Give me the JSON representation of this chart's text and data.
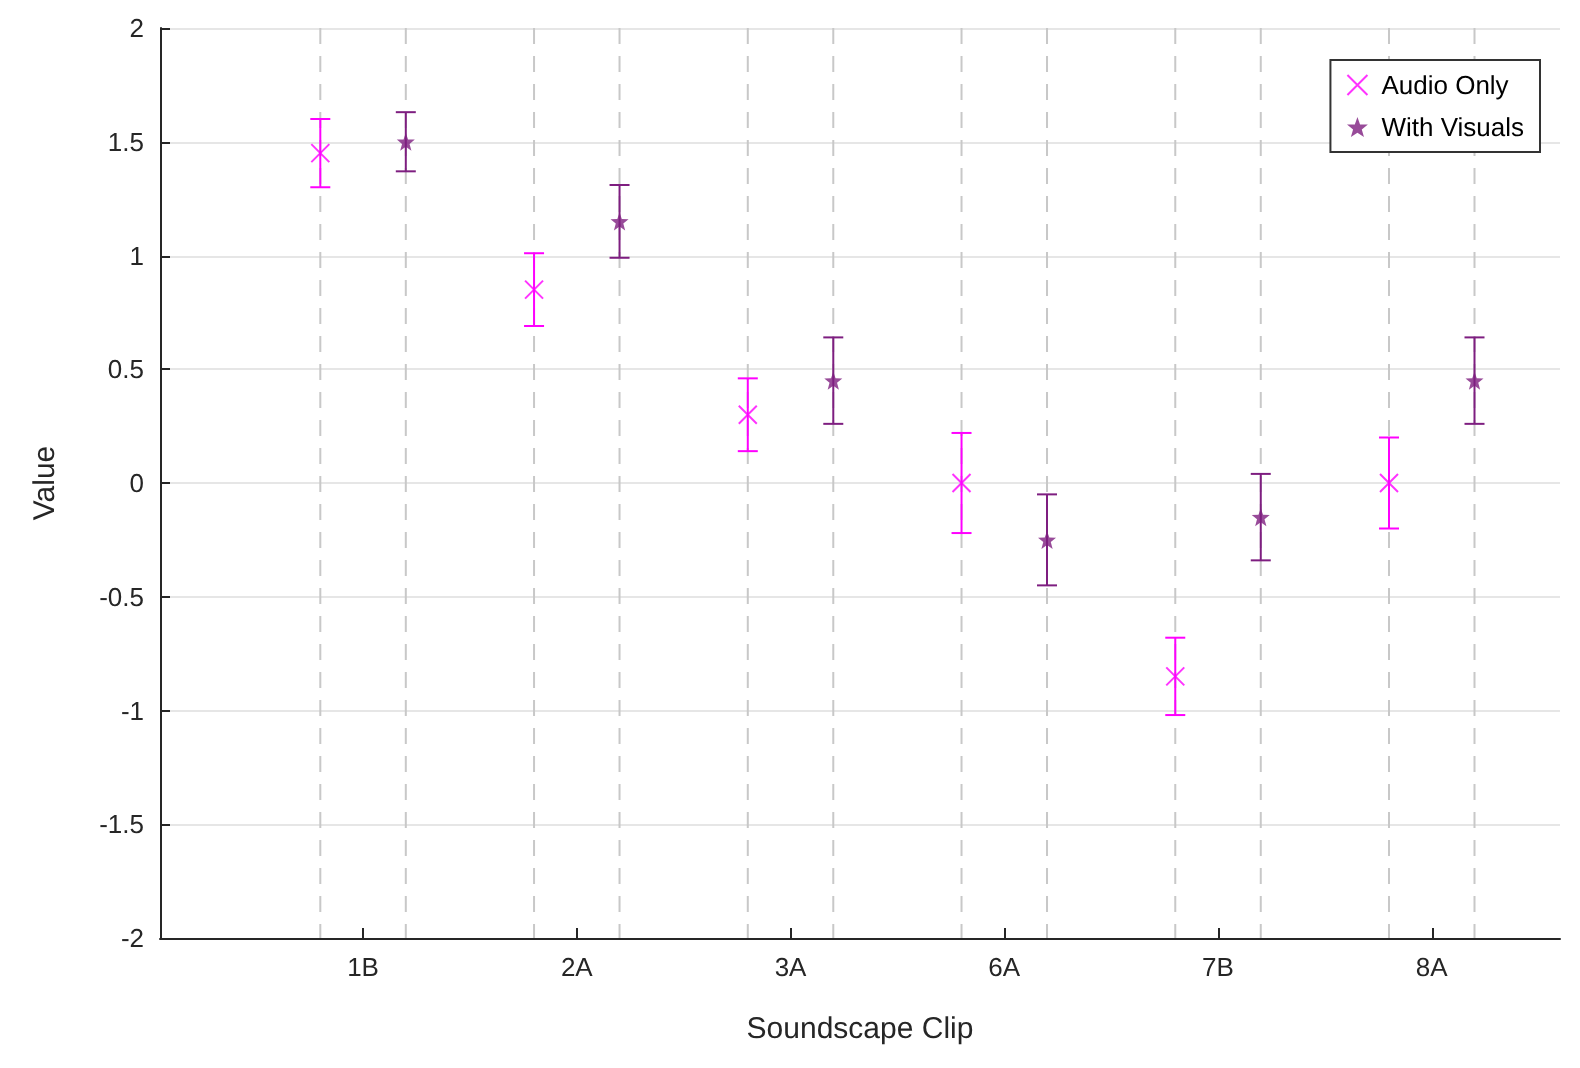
{
  "chart_data": {
    "type": "scatter",
    "xlabel": "Soundscape Clip",
    "ylabel": "Value",
    "categories": [
      "1B",
      "2A",
      "3A",
      "6A",
      "7B",
      "8A"
    ],
    "ylim": [
      -2,
      2
    ],
    "yticks": [
      -2,
      -1.5,
      -1,
      -0.5,
      0,
      0.5,
      1,
      1.5,
      2
    ],
    "grid": "y",
    "legend": "top right",
    "series": [
      {
        "name": "Audio Only",
        "color": "#ff00ff",
        "marker": "cross",
        "values": [
          1.45,
          0.85,
          0.3,
          0,
          -0.85,
          0
        ],
        "errors": [
          [
            1.3,
            1.6
          ],
          [
            0.69,
            1.01
          ],
          [
            0.14,
            0.46
          ],
          [
            -0.22,
            0.22
          ],
          [
            -1.02,
            -0.68
          ],
          [
            -0.2,
            0.2
          ]
        ]
      },
      {
        "name": "With Visuals",
        "color": "#7e1e80",
        "marker": "star",
        "values": [
          1.5,
          1.15,
          0.45,
          -0.25,
          -0.15,
          0.45
        ],
        "errors": [
          [
            1.37,
            1.63
          ],
          [
            0.99,
            1.31
          ],
          [
            0.26,
            0.64
          ],
          [
            -0.45,
            -0.05
          ],
          [
            -0.34,
            0.04
          ],
          [
            0.26,
            0.64
          ]
        ]
      }
    ]
  }
}
